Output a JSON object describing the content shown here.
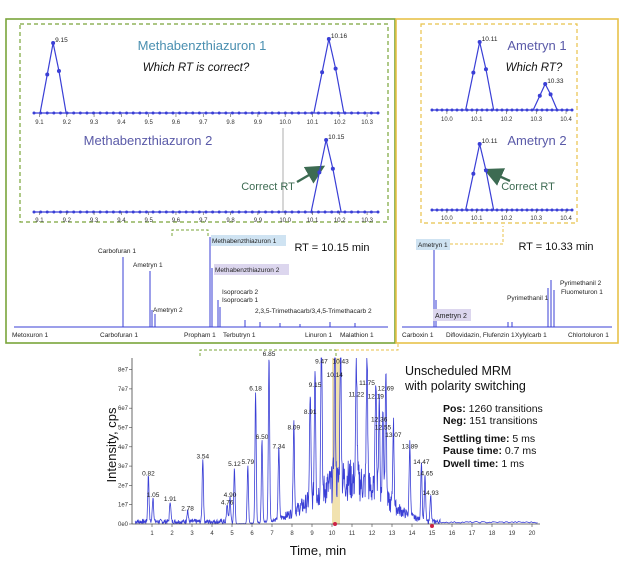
{
  "panels": {
    "left": {
      "border_color": "#7aa53a",
      "top_title": "Methabenzthiazuron 1",
      "question": "Which RT is correct?",
      "bottom_title": "Methabenzthiazuron 2",
      "correct_label": "Correct RT",
      "rt_label": "RT = 10.15 min",
      "axis_ticks": [
        "9.1",
        "9.2",
        "9.3",
        "9.4",
        "9.5",
        "9.6",
        "9.7",
        "9.8",
        "9.9",
        "10.0",
        "10.1",
        "10.2",
        "10.3"
      ],
      "top_peaks": [
        {
          "x": 9.15,
          "label": "9.15"
        },
        {
          "x": 10.16,
          "label": "10.16"
        }
      ],
      "bottom_peaks": [
        {
          "x": 10.15,
          "label": "10.15"
        }
      ],
      "compound_labels": [
        "Carbofuran 1",
        "Ametryn 1",
        "Ametryn 2",
        "Methabenzthiazuron 1",
        "Methabenzthiazuron 2",
        "Isoprocarb 2",
        "Isoprocarb 1",
        "2,3,5-Trimethacarb/3,4,5-Trimethacarb 2"
      ],
      "baseline_labels": [
        "Metoxuron 1",
        "Carbofuran 1",
        "Propham 1",
        "Terbutryn 1",
        "Linuron 1",
        "Malathion 1"
      ]
    },
    "right": {
      "border_color": "#e8c24a",
      "top_title": "Ametryn 1",
      "question": "Which RT?",
      "bottom_title": "Ametryn 2",
      "correct_label": "Correct RT",
      "rt_label": "RT = 10.33 min",
      "axis_ticks": [
        "10.0",
        "10.1",
        "10.2",
        "10.3",
        "10.4"
      ],
      "top_peaks": [
        {
          "x": 10.11,
          "label": "10.11"
        },
        {
          "x": 10.33,
          "label": "10.33"
        }
      ],
      "bottom_peaks": [
        {
          "x": 10.11,
          "label": "10.11"
        }
      ],
      "compound_labels": [
        "Ametryn 1",
        "Ametryn 2",
        "Pyrimethanil 2",
        "Pyrimethanil 1",
        "Fluometuron 1"
      ],
      "baseline_labels": [
        "Carboxin 1",
        "Diflovidazin, Flufenzin 1",
        "Xylylcarb 1",
        "Chlortoluron 1"
      ]
    }
  },
  "info": {
    "heading_line1": "Unscheduled MRM",
    "heading_line2": "with polarity switching",
    "lines": [
      {
        "key": "Pos:",
        "value": "1260 transitions"
      },
      {
        "key": "Neg:",
        "value": "151 transitions"
      },
      {
        "key": "Settling time:",
        "value": "5 ms"
      },
      {
        "key": "Pause time:",
        "value": "0.7 ms"
      },
      {
        "key": "Dwell time:",
        "value": "1 ms"
      }
    ]
  },
  "chart_data": {
    "type": "line",
    "title": "",
    "xlabel": "Time, min",
    "ylabel": "Intensity, cps",
    "xlim": [
      0,
      20.4
    ],
    "ylim": [
      0,
      8.6
    ],
    "y_unit_ticks": [
      "0e0",
      "1e7",
      "2e7",
      "3e7",
      "4e7",
      "5e7",
      "6e7",
      "7e7",
      "8e7"
    ],
    "x_ticks": [
      "1",
      "2",
      "3",
      "4",
      "5",
      "6",
      "7",
      "8",
      "9",
      "10",
      "11",
      "12",
      "13",
      "14",
      "15",
      "16",
      "17",
      "18",
      "19",
      "20"
    ],
    "highlight_x": 10.2,
    "line_color": "#3a3fd6",
    "peaks": [
      {
        "x": 0.82,
        "y": 2.4,
        "label": "0.82"
      },
      {
        "x": 1.05,
        "y": 1.3,
        "label": "1.05"
      },
      {
        "x": 1.91,
        "y": 1.1,
        "label": "1.91"
      },
      {
        "x": 2.78,
        "y": 0.6,
        "label": "2.78"
      },
      {
        "x": 3.54,
        "y": 3.3,
        "label": "3.54"
      },
      {
        "x": 4.76,
        "y": 0.9,
        "label": "4.76"
      },
      {
        "x": 4.9,
        "y": 1.3,
        "label": "4.90"
      },
      {
        "x": 5.12,
        "y": 2.9,
        "label": "5.12"
      },
      {
        "x": 5.79,
        "y": 3.0,
        "label": "5.79"
      },
      {
        "x": 6.18,
        "y": 6.8,
        "label": "6.18"
      },
      {
        "x": 6.5,
        "y": 4.3,
        "label": "6.50"
      },
      {
        "x": 6.85,
        "y": 8.6,
        "label": "6.85"
      },
      {
        "x": 7.34,
        "y": 3.8,
        "label": "7.34"
      },
      {
        "x": 8.09,
        "y": 4.8,
        "label": "8.09"
      },
      {
        "x": 8.91,
        "y": 5.6,
        "label": "8.91"
      },
      {
        "x": 9.15,
        "y": 7.0,
        "label": "9.15"
      },
      {
        "x": 9.47,
        "y": 8.2,
        "label": "9.47"
      },
      {
        "x": 10.14,
        "y": 7.5,
        "label": "10.14"
      },
      {
        "x": 10.43,
        "y": 8.2,
        "label": "10.43"
      },
      {
        "x": 11.22,
        "y": 6.5,
        "label": "11.22"
      },
      {
        "x": 11.75,
        "y": 7.1,
        "label": "11.75"
      },
      {
        "x": 12.19,
        "y": 6.4,
        "label": "12.19"
      },
      {
        "x": 12.69,
        "y": 6.8,
        "label": "12.69"
      },
      {
        "x": 12.36,
        "y": 5.2,
        "label": "12.36"
      },
      {
        "x": 12.55,
        "y": 4.8,
        "label": "12.55"
      },
      {
        "x": 13.07,
        "y": 4.4,
        "label": "13.07"
      },
      {
        "x": 13.89,
        "y": 3.8,
        "label": "13.89"
      },
      {
        "x": 14.47,
        "y": 3.0,
        "label": "14.47"
      },
      {
        "x": 14.65,
        "y": 2.4,
        "label": "14.65"
      },
      {
        "x": 14.93,
        "y": 1.4,
        "label": "14.93"
      }
    ]
  }
}
